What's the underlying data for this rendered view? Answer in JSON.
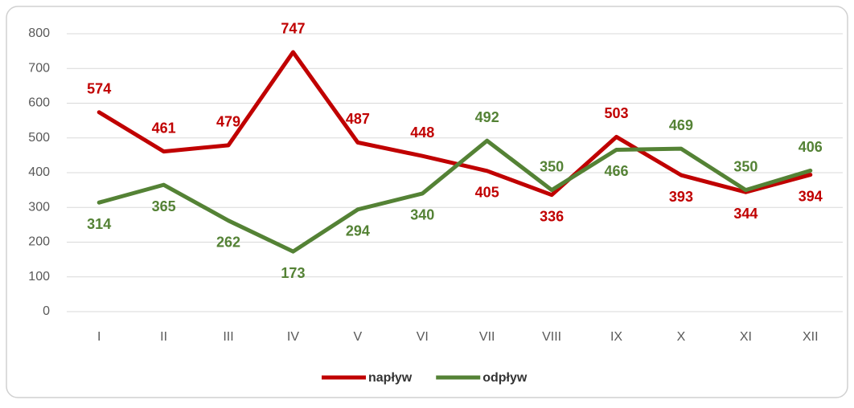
{
  "chart_data": {
    "type": "line",
    "categories": [
      "I",
      "II",
      "III",
      "IV",
      "V",
      "VI",
      "VII",
      "VIII",
      "IX",
      "X",
      "XI",
      "XII"
    ],
    "series": [
      {
        "name": "napływ",
        "color": "#c00000",
        "values": [
          574,
          461,
          479,
          747,
          487,
          448,
          405,
          336,
          503,
          393,
          344,
          394
        ]
      },
      {
        "name": "odpływ",
        "color": "#548235",
        "values": [
          314,
          365,
          262,
          173,
          294,
          340,
          492,
          350,
          466,
          469,
          350,
          406
        ]
      }
    ],
    "ylim": [
      0,
      800
    ],
    "yticks": [
      0,
      100,
      200,
      300,
      400,
      500,
      600,
      700,
      800
    ],
    "grid": true,
    "legend": "bottom"
  }
}
